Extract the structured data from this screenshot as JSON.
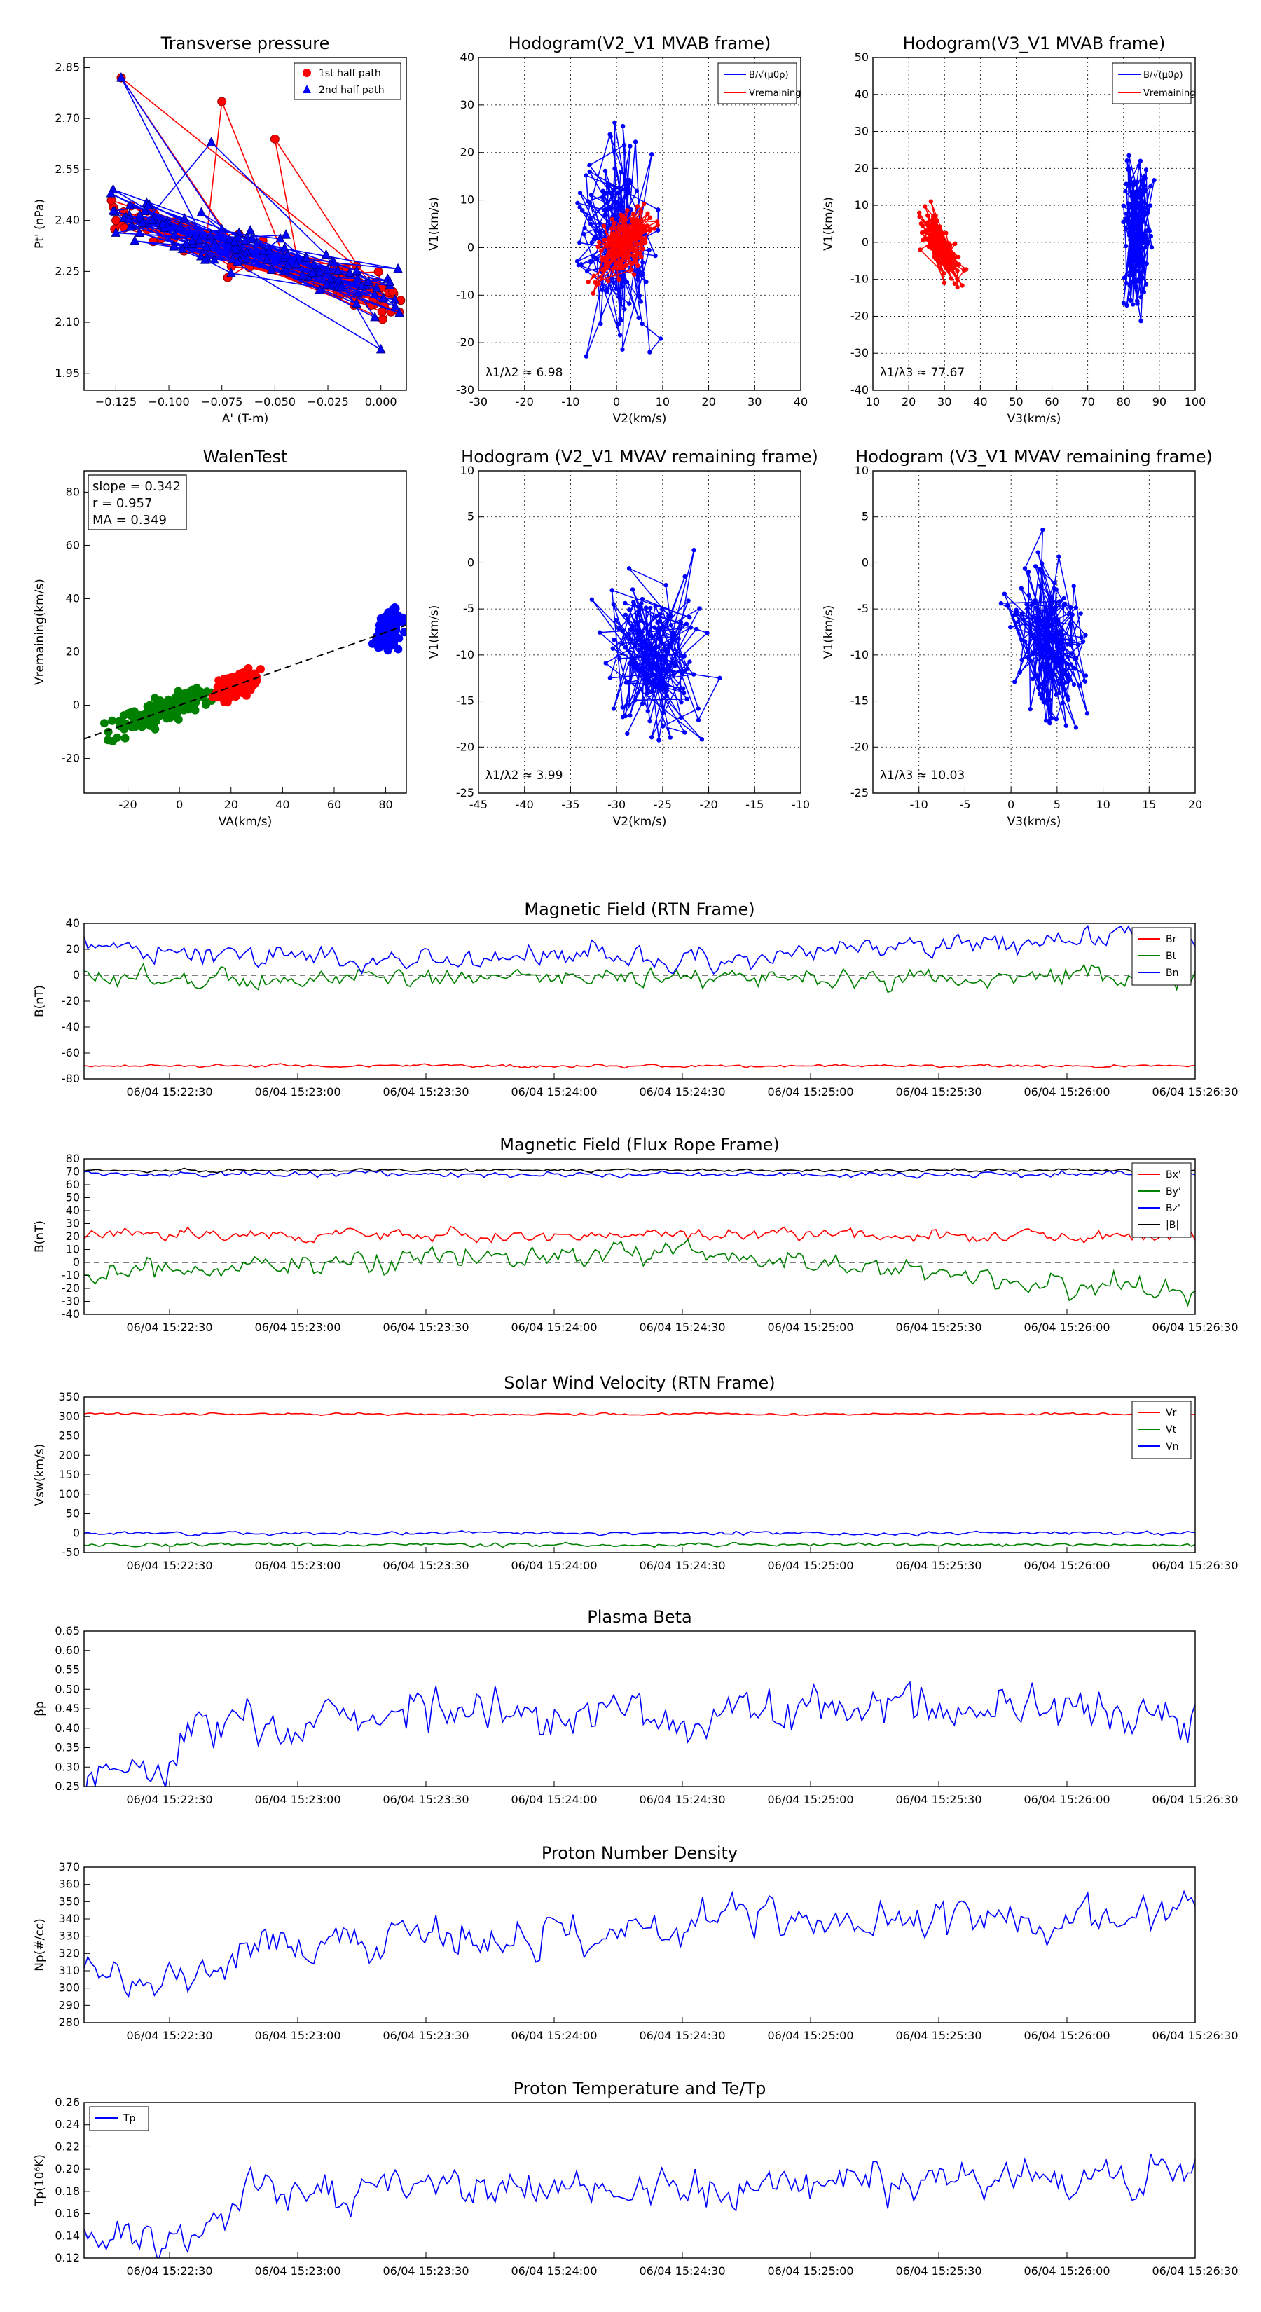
{
  "colors": {
    "red": "#ff0000",
    "green": "#008000",
    "blue": "#0000ff",
    "black": "#000000",
    "gray": "#999999",
    "darkred": "#8b0000",
    "navy": "#00008b"
  },
  "chart_data": [
    {
      "id": "pt",
      "type": "scatter",
      "title": "Transverse pressure",
      "xlabel": "A' (T-m)",
      "ylabel": "Pt' (nPa)",
      "xlim": [
        -0.14,
        0.012
      ],
      "ylim": [
        1.9,
        2.88
      ],
      "xticks": [
        -0.125,
        -0.1,
        -0.075,
        -0.05,
        -0.025,
        0.0
      ],
      "xtick_labels": [
        "−0.125",
        "−0.100",
        "−0.075",
        "−0.050",
        "−0.025",
        "0.000"
      ],
      "yticks": [
        1.95,
        2.1,
        2.25,
        2.4,
        2.55,
        2.7,
        2.85
      ],
      "ytick_labels": [
        "1.95",
        "2.10",
        "2.25",
        "2.40",
        "2.55",
        "2.70",
        "2.85"
      ],
      "legend": [
        "1st half path",
        "2nd half path"
      ],
      "series": [
        {
          "name": "1st half path",
          "seed": 11,
          "x0": -0.128,
          "x1": 0.01,
          "n": 120,
          "trend": [
            2.43,
            2.16
          ],
          "noise": 0.09,
          "spikes": [
            [
              -0.1225,
              2.82
            ],
            [
              -0.075,
              2.75
            ],
            [
              -0.05,
              2.64
            ]
          ]
        },
        {
          "name": "2nd half path",
          "seed": 29,
          "x0": -0.128,
          "x1": 0.01,
          "n": 120,
          "trend": [
            2.42,
            2.17
          ],
          "noise": 0.1,
          "spikes": [
            [
              -0.1225,
              2.82
            ],
            [
              -0.08,
              2.63
            ],
            [
              0.0,
              2.02
            ]
          ]
        }
      ]
    },
    {
      "id": "h1",
      "type": "line",
      "title": "Hodogram(V2_V1 MVAB frame)",
      "xlabel": "V2(km/s)",
      "ylabel": "V1(km/s)",
      "xlim": [
        -30,
        40
      ],
      "ylim": [
        -30,
        40
      ],
      "xticks": [
        -30,
        -20,
        -10,
        0,
        10,
        20,
        30,
        40
      ],
      "yticks": [
        -30,
        -20,
        -10,
        0,
        10,
        20,
        30,
        40
      ],
      "legend": [
        "B/√(μ0ρ)",
        "Vremaining"
      ],
      "annotation": "λ1/λ2 ≈ 6.98",
      "series": [
        {
          "name": "B",
          "seed": 5,
          "cx": 0,
          "cy": 2,
          "sx": 6,
          "sy": 14,
          "n": 160
        },
        {
          "name": "V",
          "seed": 17,
          "cx": 2,
          "cy": 1,
          "sx": 4,
          "sy": 4,
          "n": 160,
          "slope": 0.6
        }
      ]
    },
    {
      "id": "h2",
      "type": "line",
      "title": "Hodogram(V3_V1 MVAB frame)",
      "xlabel": "V3(km/s)",
      "ylabel": "V1(km/s)",
      "xlim": [
        10,
        100
      ],
      "ylim": [
        -40,
        50
      ],
      "xticks": [
        10,
        20,
        30,
        40,
        50,
        60,
        70,
        80,
        90,
        100
      ],
      "yticks": [
        -40,
        -30,
        -20,
        -10,
        0,
        10,
        20,
        30,
        40,
        50
      ],
      "legend": [
        "B/√(μ0ρ)",
        "Vremaining"
      ],
      "annotation": "λ1/λ3 ≈ 77.67",
      "series": [
        {
          "name": "B",
          "seed": 7,
          "cx": 84,
          "cy": 4,
          "sx": 2.5,
          "sy": 14,
          "n": 160,
          "slope": -0.15
        },
        {
          "name": "V",
          "seed": 23,
          "cx": 29,
          "cy": -1,
          "sx": 4,
          "sy": 5,
          "n": 160,
          "slope": -1.2
        }
      ]
    },
    {
      "id": "walen",
      "type": "scatter",
      "title": "WalenTest",
      "xlabel": "VA(km/s)",
      "ylabel": "Vremaining(km/s)",
      "xlim": [
        -37,
        88
      ],
      "ylim": [
        -33,
        88
      ],
      "xticks": [
        -20,
        0,
        20,
        40,
        60,
        80
      ],
      "yticks": [
        -20,
        0,
        20,
        40,
        60,
        80
      ],
      "box": [
        "slope = 0.342",
        "r = 0.957",
        "MA = 0.349"
      ],
      "fit": {
        "slope": 0.342,
        "intercept": 0
      },
      "series": [
        {
          "name": "green",
          "seed": 3,
          "cx": -5,
          "sx": 13,
          "n": 200
        },
        {
          "name": "red",
          "seed": 9,
          "cx": 22,
          "sx": 6,
          "n": 160
        },
        {
          "name": "blue",
          "seed": 13,
          "cx": 81,
          "sx": 3.5,
          "n": 120
        }
      ]
    },
    {
      "id": "h3",
      "type": "line",
      "title": "Hodogram (V2_V1 MVAV remaining frame)",
      "xlabel": "V2(km/s)",
      "ylabel": "V1(km/s)",
      "xlim": [
        -45,
        -10
      ],
      "ylim": [
        -25,
        10
      ],
      "xticks": [
        -45,
        -40,
        -35,
        -30,
        -25,
        -20,
        -15,
        -10
      ],
      "yticks": [
        -25,
        -20,
        -15,
        -10,
        -5,
        0,
        5,
        10
      ],
      "annotation": "λ1/λ2 ≈ 3.99",
      "series": [
        {
          "name": "B",
          "seed": 31,
          "cx": -26,
          "cy": -10,
          "sx": 3.5,
          "sy": 6,
          "n": 180
        }
      ]
    },
    {
      "id": "h4",
      "type": "line",
      "title": "Hodogram (V3_V1 MVAV remaining frame)",
      "xlabel": "V3(km/s)",
      "ylabel": "V1(km/s)",
      "xlim": [
        -15,
        20
      ],
      "ylim": [
        -25,
        10
      ],
      "xticks": [
        -10,
        -5,
        0,
        5,
        10,
        15,
        20
      ],
      "yticks": [
        -25,
        -20,
        -15,
        -10,
        -5,
        0,
        5,
        10
      ],
      "annotation": "λ1/λ3 ≈ 10.03",
      "series": [
        {
          "name": "B",
          "seed": 37,
          "cx": 4,
          "cy": -9,
          "sx": 2.6,
          "sy": 6,
          "n": 180,
          "slope": -0.6
        }
      ]
    },
    {
      "id": "mag_rtn",
      "type": "line",
      "title": "Magnetic Field (RTN Frame)",
      "ylabel": "B(nT)",
      "ylim": [
        -80,
        40
      ],
      "yticks": [
        -80,
        -60,
        -40,
        -20,
        0,
        20,
        40
      ],
      "legend_pos": "top-right",
      "dashed_zero": true,
      "series": [
        {
          "name": "Br",
          "color": "red",
          "base": -70,
          "noise": 0.8,
          "seed": 41
        },
        {
          "name": "Bt",
          "color": "green",
          "base": -2,
          "noise": 5,
          "seed": 43
        },
        {
          "name": "Bn",
          "color": "blue",
          "base": 8,
          "noise": 6,
          "seed": 47,
          "drift": [
            [
              0,
              14
            ],
            [
              0.2,
              6
            ],
            [
              0.45,
              8
            ],
            [
              0.6,
              2
            ],
            [
              0.72,
              16
            ],
            [
              0.9,
              22
            ],
            [
              1,
              18
            ]
          ]
        }
      ]
    },
    {
      "id": "mag_fr",
      "type": "line",
      "title": "Magnetic Field (Flux Rope Frame)",
      "ylabel": "B(nT)",
      "ylim": [
        -40,
        80
      ],
      "yticks": [
        -40,
        -30,
        -20,
        -10,
        0,
        10,
        20,
        30,
        40,
        50,
        60,
        70,
        80
      ],
      "legend_pos": "top-right",
      "dashed_zero": true,
      "series": [
        {
          "name": "Bx'",
          "color": "red",
          "base": 21,
          "noise": 3,
          "seed": 51
        },
        {
          "name": "By'",
          "color": "green",
          "base": 0,
          "noise": 6,
          "seed": 53,
          "drift": [
            [
              0,
              -8
            ],
            [
              0.3,
              2
            ],
            [
              0.55,
              8
            ],
            [
              0.7,
              -4
            ],
            [
              1,
              -25
            ]
          ]
        },
        {
          "name": "Bz'",
          "color": "blue",
          "base": 68,
          "noise": 1.5,
          "seed": 57
        },
        {
          "name": "|B|",
          "color": "black",
          "base": 71,
          "noise": 0.8,
          "seed": 59
        }
      ]
    },
    {
      "id": "vsw",
      "type": "line",
      "title": "Solar Wind Velocity (RTN Frame)",
      "ylabel": "Vsw(km/s)",
      "ylim": [
        -50,
        350
      ],
      "yticks": [
        -50,
        0,
        50,
        100,
        150,
        200,
        250,
        300,
        350
      ],
      "legend_pos": "top-right",
      "series": [
        {
          "name": "Vr",
          "color": "red",
          "base": 306,
          "noise": 2,
          "seed": 61
        },
        {
          "name": "Vt",
          "color": "green",
          "base": -30,
          "noise": 3,
          "seed": 63
        },
        {
          "name": "Vn",
          "color": "blue",
          "base": 0,
          "noise": 3,
          "seed": 67
        }
      ]
    },
    {
      "id": "beta",
      "type": "line",
      "title": "Plasma Beta",
      "ylabel": "βp",
      "ylim": [
        0.25,
        0.65
      ],
      "yticks": [
        0.25,
        0.3,
        0.35,
        0.4,
        0.45,
        0.5,
        0.55,
        0.6,
        0.65
      ],
      "ytick_labels": [
        "0.25",
        "0.30",
        "0.35",
        "0.40",
        "0.45",
        "0.50",
        "0.55",
        "0.60",
        "0.65"
      ],
      "series": [
        {
          "name": "beta",
          "color": "blue",
          "base": 0.43,
          "noise": 0.04,
          "seed": 71,
          "drift": [
            [
              0,
              -0.14
            ],
            [
              0.08,
              -0.13
            ],
            [
              0.1,
              -0.02
            ],
            [
              0.15,
              0
            ],
            [
              1,
              0.02
            ]
          ]
        }
      ]
    },
    {
      "id": "np",
      "type": "line",
      "title": "Proton Number Density",
      "ylabel": "Np(#/cc)",
      "ylim": [
        280,
        370
      ],
      "yticks": [
        280,
        290,
        300,
        310,
        320,
        330,
        340,
        350,
        360,
        370
      ],
      "series": [
        {
          "name": "Np",
          "color": "blue",
          "base": 330,
          "noise": 8,
          "seed": 73,
          "drift": [
            [
              0,
              -25
            ],
            [
              0.1,
              -28
            ],
            [
              0.15,
              -8
            ],
            [
              0.4,
              0
            ],
            [
              0.6,
              10
            ],
            [
              1,
              12
            ]
          ]
        }
      ]
    },
    {
      "id": "tp",
      "type": "line",
      "title": "Proton Temperature and Te/Tp",
      "ylabel": "Tp(10⁶K)",
      "ylim": [
        0.12,
        0.26
      ],
      "yticks": [
        0.12,
        0.14,
        0.16,
        0.18,
        0.2,
        0.22,
        0.24,
        0.26
      ],
      "ytick_labels": [
        "0.12",
        "0.14",
        "0.16",
        "0.18",
        "0.20",
        "0.22",
        "0.24",
        "0.26"
      ],
      "legend_pos": "top-left",
      "series": [
        {
          "name": "Tp",
          "color": "blue",
          "base": 0.19,
          "noise": 0.012,
          "seed": 79,
          "drift": [
            [
              0,
              -0.05
            ],
            [
              0.1,
              -0.05
            ],
            [
              0.15,
              -0.01
            ],
            [
              1,
              0
            ]
          ]
        }
      ]
    }
  ],
  "time_axis": {
    "ticks": [
      "06/04 15:22:30",
      "06/04 15:23:00",
      "06/04 15:23:30",
      "06/04 15:24:00",
      "06/04 15:24:30",
      "06/04 15:25:00",
      "06/04 15:25:30",
      "06/04 15:26:00",
      "06/04 15:26:30"
    ],
    "start_sec": -20,
    "end_sec": 240
  }
}
